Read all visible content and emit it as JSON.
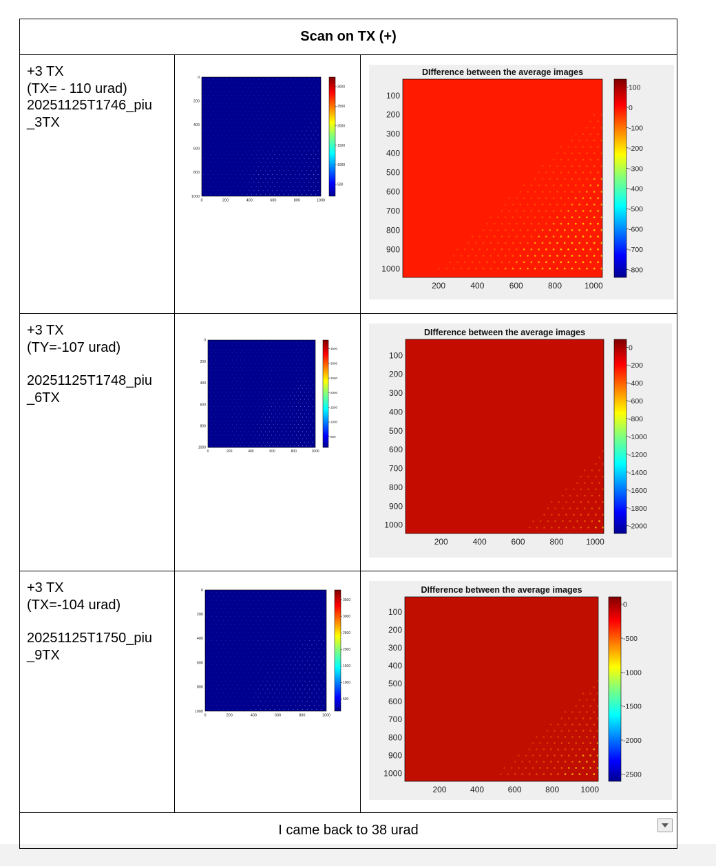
{
  "table": {
    "title": "Scan on TX (+)",
    "footer_text": "I came back to 38 urad",
    "rows": [
      {
        "lines": [
          "+3 TX",
          "(TX= - 110 urad)",
          "20251125T1746_piu",
          "_3TX"
        ],
        "left_chart": {
          "ticks_axis": [
            "0",
            "200",
            "400",
            "600",
            "800",
            "1000"
          ],
          "cbar_ticks": [
            "3000",
            "2500",
            "2000",
            "1500",
            "1000",
            "500"
          ]
        },
        "right_chart": {
          "title": "DIfference between the average images",
          "y_ticks": [
            "100",
            "200",
            "300",
            "400",
            "500",
            "600",
            "700",
            "800",
            "900",
            "1000"
          ],
          "x_ticks": [
            "200",
            "400",
            "600",
            "800",
            "1000"
          ],
          "cbar_ticks": [
            "100",
            "0",
            "-100",
            "-200",
            "-300",
            "-400",
            "-500",
            "-600",
            "-700",
            "-800"
          ]
        }
      },
      {
        "lines": [
          "+3 TX",
          "(TY=-107 urad)",
          "",
          "20251125T1748_piu",
          "_6TX"
        ],
        "left_chart": {
          "ticks_axis": [
            "0",
            "200",
            "400",
            "600",
            "800",
            "1000"
          ],
          "cbar_ticks": [
            "3500",
            "3000",
            "2500",
            "2000",
            "1500",
            "1000",
            "500"
          ]
        },
        "right_chart": {
          "title": "DIfference between the average images",
          "y_ticks": [
            "100",
            "200",
            "300",
            "400",
            "500",
            "600",
            "700",
            "800",
            "900",
            "1000"
          ],
          "x_ticks": [
            "200",
            "400",
            "600",
            "800",
            "1000"
          ],
          "cbar_ticks": [
            "0",
            "-200",
            "-400",
            "-600",
            "-800",
            "-1000",
            "-1200",
            "-1400",
            "-1600",
            "-1800",
            "-2000"
          ]
        }
      },
      {
        "lines": [
          "+3 TX",
          "(TX=-104 urad)",
          "",
          "20251125T1750_piu",
          "_9TX"
        ],
        "left_chart": {
          "ticks_axis": [
            "0",
            "200",
            "400",
            "600",
            "800",
            "1000"
          ],
          "cbar_ticks": [
            "3500",
            "3000",
            "2500",
            "2000",
            "1500",
            "1000",
            "500"
          ]
        },
        "right_chart": {
          "title": "DIfference between the average images",
          "y_ticks": [
            "100",
            "200",
            "300",
            "400",
            "500",
            "600",
            "700",
            "800",
            "900",
            "1000"
          ],
          "x_ticks": [
            "200",
            "400",
            "600",
            "800",
            "1000"
          ],
          "cbar_ticks": [
            "0",
            "-500",
            "-1000",
            "-1500",
            "-2000",
            "-2500"
          ]
        }
      }
    ]
  },
  "colors": {
    "jet_dark_blue": "#00008f",
    "diff_red_1": "#ff1a00",
    "diff_red_2": "#c40c00",
    "diff_red_3": "#c00e00"
  }
}
